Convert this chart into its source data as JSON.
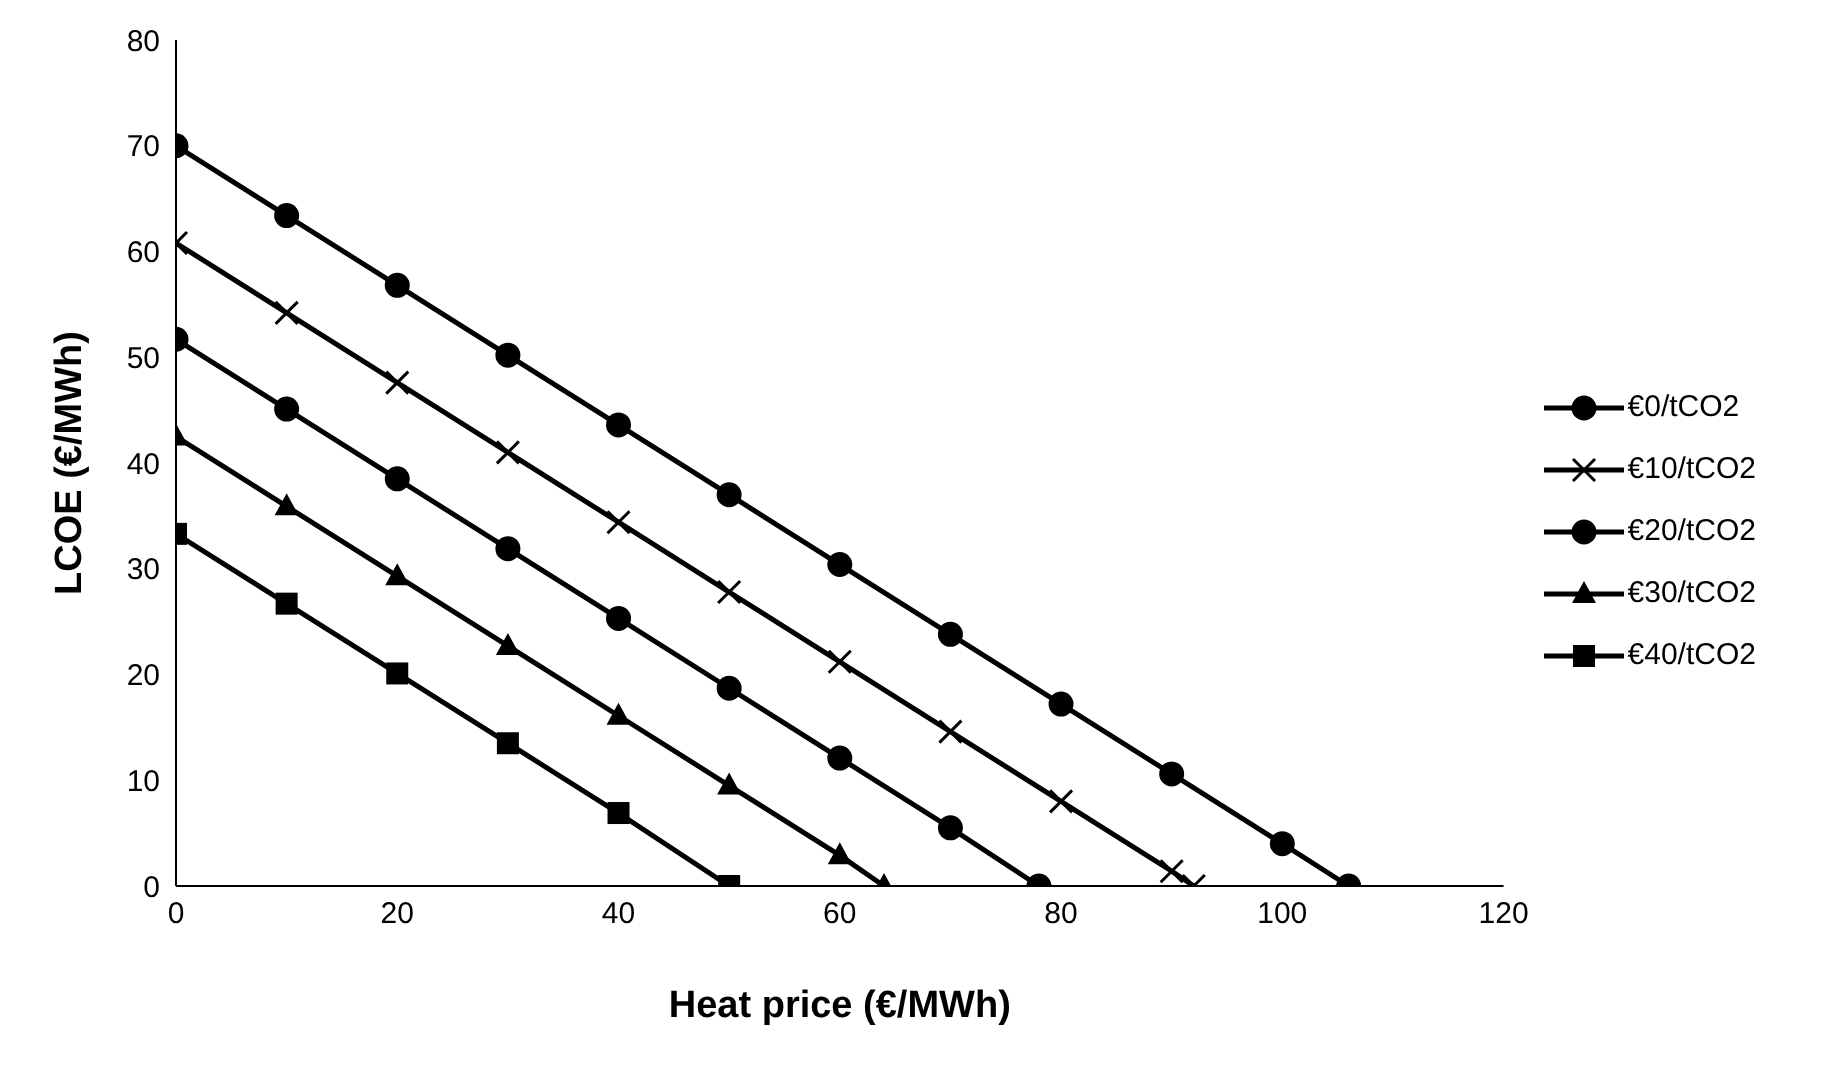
{
  "chart_data": {
    "type": "line",
    "xlabel": "Heat price (€/MWh)",
    "ylabel": "LCOE (€/MWh)",
    "xlim": [
      0,
      120
    ],
    "xticks": [
      0,
      20,
      40,
      60,
      80,
      100,
      120
    ],
    "ylim": [
      0,
      80
    ],
    "yticks": [
      0,
      10,
      20,
      30,
      40,
      50,
      60,
      70,
      80
    ],
    "grid": false,
    "legend": "right",
    "line_style": "solid",
    "series": [
      {
        "name": "€0/tCO2",
        "color": "#000000",
        "marker": "circle",
        "x": [
          0,
          10,
          20,
          30,
          40,
          50,
          60,
          70,
          80,
          90,
          100,
          106
        ],
        "values": [
          70,
          63.4,
          56.8,
          50.2,
          43.6,
          37,
          30.4,
          23.8,
          17.2,
          10.6,
          4,
          0
        ]
      },
      {
        "name": "€10/tCO2",
        "color": "#000000",
        "marker": "cross",
        "x": [
          0,
          10,
          20,
          30,
          40,
          50,
          60,
          70,
          80,
          90,
          92
        ],
        "values": [
          60.8,
          54.2,
          47.6,
          41,
          34.4,
          27.8,
          21.2,
          14.6,
          8,
          1.4,
          0
        ]
      },
      {
        "name": "€20/tCO2",
        "color": "#000000",
        "marker": "circle",
        "x": [
          0,
          10,
          20,
          30,
          40,
          50,
          60,
          70,
          78
        ],
        "values": [
          51.7,
          45.1,
          38.5,
          31.9,
          25.3,
          18.7,
          12.1,
          5.5,
          0
        ]
      },
      {
        "name": "€30/tCO2",
        "color": "#000000",
        "marker": "triangle",
        "x": [
          0,
          10,
          20,
          30,
          40,
          50,
          60,
          64
        ],
        "values": [
          42.5,
          35.9,
          29.3,
          22.7,
          16.1,
          9.5,
          2.9,
          0
        ]
      },
      {
        "name": "€40/tCO2",
        "color": "#000000",
        "marker": "square",
        "x": [
          0,
          10,
          20,
          30,
          40,
          50
        ],
        "values": [
          33.3,
          26.7,
          20.1,
          13.5,
          6.9,
          0
        ]
      }
    ]
  }
}
